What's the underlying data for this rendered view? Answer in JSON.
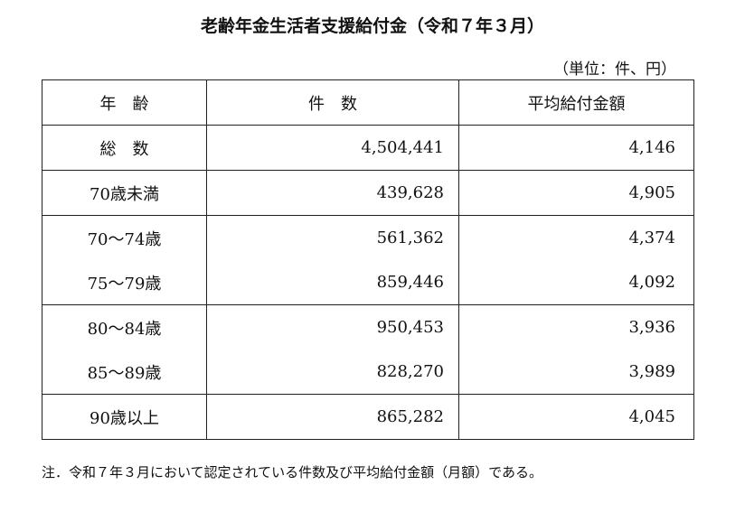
{
  "header": {
    "title": "老齢年金生活者支援給付金（令和７年３月）",
    "unit": "（単位：件、円）"
  },
  "table": {
    "columns": [
      "年　齢",
      "件　数",
      "平均給付金額"
    ],
    "rows": [
      [
        "総　数",
        "4,504,441",
        "4,146"
      ],
      [
        "70歳未満",
        "439,628",
        "4,905"
      ],
      [
        "70～74歳",
        "561,362",
        "4,374"
      ],
      [
        "75～79歳",
        "859,446",
        "4,092"
      ],
      [
        "80～84歳",
        "950,453",
        "3,936"
      ],
      [
        "85～89歳",
        "828,270",
        "3,989"
      ],
      [
        "90歳以上",
        "865,282",
        "4,045"
      ]
    ]
  },
  "note": "注．令和７年３月において認定されている件数及び平均給付金額（月額）である。"
}
